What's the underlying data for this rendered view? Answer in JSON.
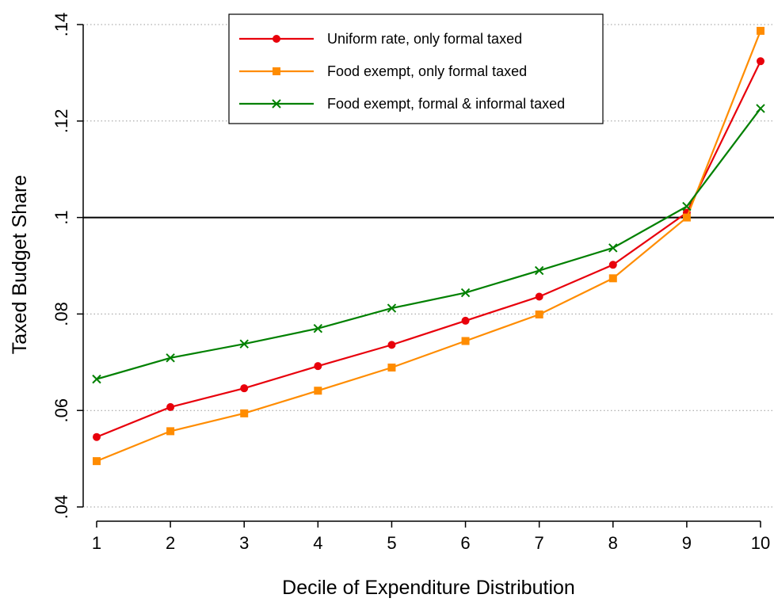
{
  "chart_data": {
    "type": "line",
    "xlabel": "Decile of Expenditure Distribution",
    "ylabel": "Taxed Budget Share",
    "x": [
      1,
      2,
      3,
      4,
      5,
      6,
      7,
      8,
      9,
      10
    ],
    "xlim": [
      1,
      10
    ],
    "ylim": [
      0.04,
      0.14
    ],
    "xticks": [
      "1",
      "2",
      "3",
      "4",
      "5",
      "6",
      "7",
      "8",
      "9",
      "10"
    ],
    "yticks": [
      {
        "value": 0.04,
        "label": ".04"
      },
      {
        "value": 0.06,
        "label": ".06"
      },
      {
        "value": 0.08,
        "label": ".08"
      },
      {
        "value": 0.1,
        "label": ".1"
      },
      {
        "value": 0.12,
        "label": ".12"
      },
      {
        "value": 0.14,
        "label": ".14"
      }
    ],
    "reference_line": 0.1,
    "grid": "horizontal dotted",
    "legend_position": "top-center",
    "series": [
      {
        "name": "Uniform rate, only formal taxed",
        "color": "#e8000b",
        "marker": "circle",
        "values": [
          0.0545,
          0.0607,
          0.0646,
          0.0692,
          0.0736,
          0.0786,
          0.0836,
          0.0902,
          0.101,
          0.1324
        ]
      },
      {
        "name": "Food exempt, only formal taxed",
        "color": "#ff8c00",
        "marker": "square",
        "values": [
          0.0495,
          0.0557,
          0.0594,
          0.0641,
          0.0689,
          0.0744,
          0.0799,
          0.0874,
          0.1,
          0.1387
        ]
      },
      {
        "name": "Food exempt, formal & informal taxed",
        "color": "#008000",
        "marker": "x",
        "values": [
          0.0665,
          0.0709,
          0.0738,
          0.077,
          0.0812,
          0.0844,
          0.089,
          0.0937,
          0.1023,
          0.1226
        ]
      }
    ]
  }
}
